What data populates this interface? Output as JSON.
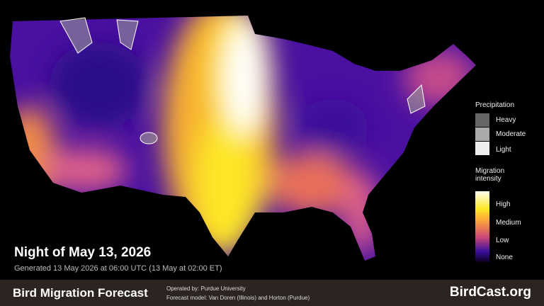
{
  "header": {
    "title": "Night of May 13, 2026",
    "subtitle": "Generated 13 May 2026 at 06:00 UTC (13 May at 02:00 ET)"
  },
  "legend": {
    "precipitation": {
      "title": "Precipitation",
      "items": [
        "Heavy",
        "Moderate",
        "Light"
      ]
    },
    "intensity": {
      "title": "Migration intensity",
      "items": [
        "High",
        "Medium",
        "Low",
        "None"
      ]
    }
  },
  "footer": {
    "name": "Bird Migration Forecast",
    "operator": "Operated by: Purdue University",
    "model": "Forecast model: Van Doren (Illinois) and Horton (Purdue)",
    "site": "BirdCast.org"
  }
}
